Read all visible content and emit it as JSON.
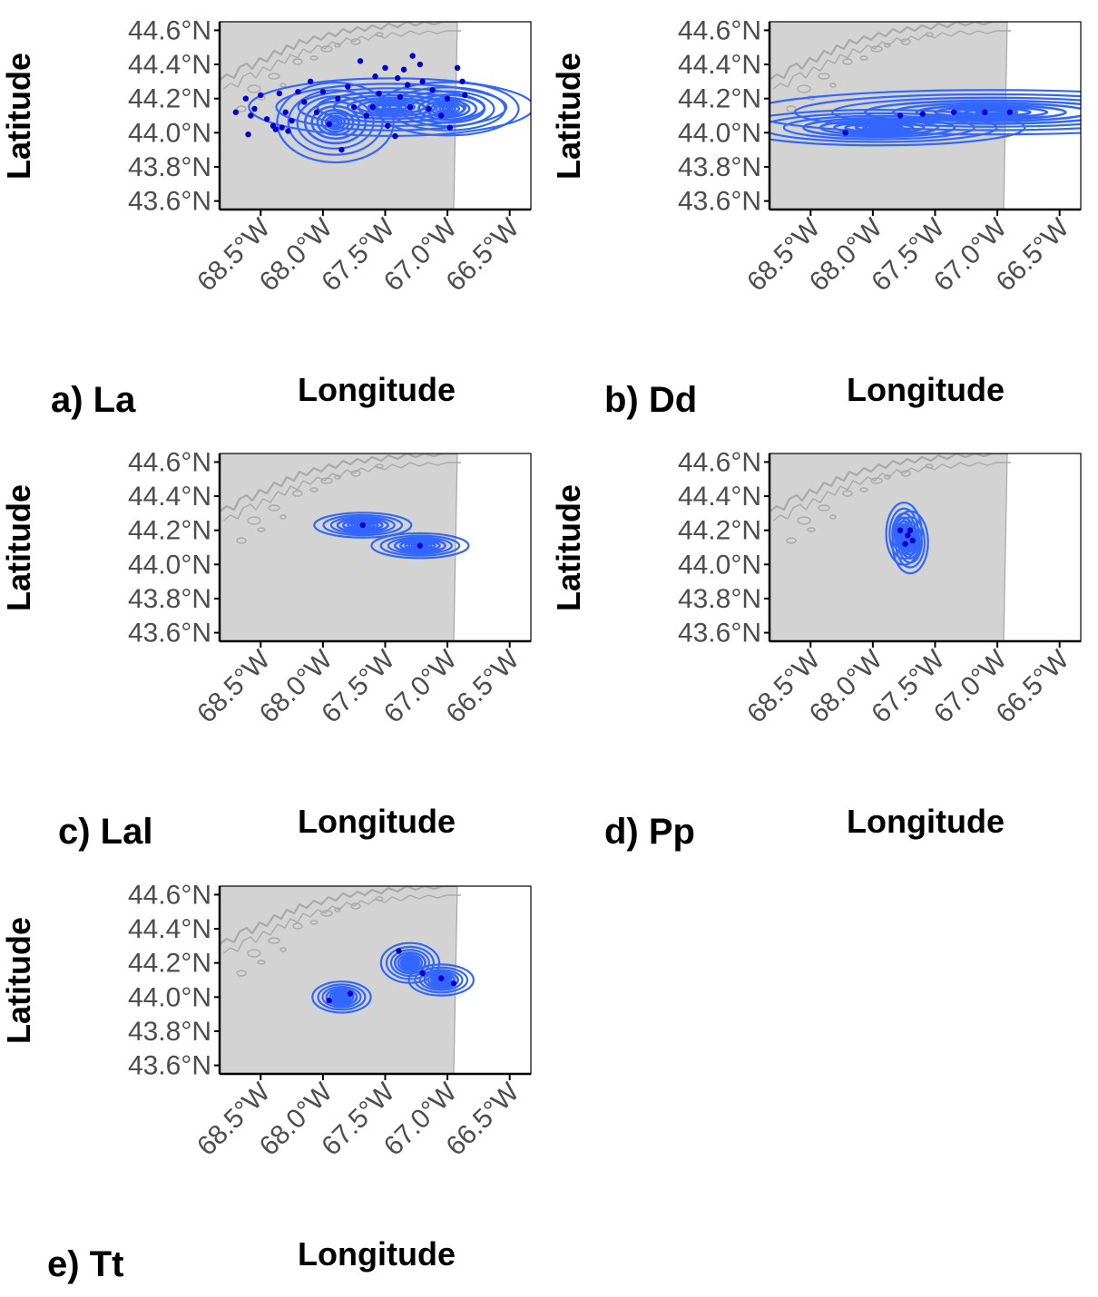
{
  "chart_data": [
    {
      "type": "map-density-contour",
      "panel_label": "a) La",
      "xlabel": "Longitude",
      "ylabel": "Latitude",
      "xlim": [
        -68.83,
        -66.33
      ],
      "ylim": [
        43.55,
        44.65
      ],
      "x_ticks": [
        -68.5,
        -68.0,
        -67.5,
        -67.0,
        -66.5
      ],
      "x_tick_labels": [
        "68.5°W",
        "68.0°W",
        "67.5°W",
        "67.0°W",
        "66.5°W"
      ],
      "y_ticks": [
        43.6,
        43.8,
        44.0,
        44.2,
        44.4,
        44.6
      ],
      "y_tick_labels": [
        "43.6°N",
        "43.8°N",
        "44.0°N",
        "44.2°N",
        "44.4°N",
        "44.6°N"
      ],
      "density_centers": [
        {
          "x": -67.45,
          "y": 44.15,
          "sx": 0.44,
          "sy": 0.065
        },
        {
          "x": -67.0,
          "y": 44.14,
          "sx": 0.22,
          "sy": 0.06
        },
        {
          "x": -67.9,
          "y": 44.06,
          "sx": 0.18,
          "sy": 0.09
        }
      ],
      "points": [
        [
          -68.62,
          44.2
        ],
        [
          -68.5,
          44.22
        ],
        [
          -68.35,
          44.23
        ],
        [
          -68.2,
          44.24
        ],
        [
          -68.58,
          44.1
        ],
        [
          -68.55,
          44.14
        ],
        [
          -68.45,
          44.08
        ],
        [
          -68.3,
          44.12
        ],
        [
          -68.15,
          44.18
        ],
        [
          -68.7,
          44.12
        ],
        [
          -68.4,
          44.04
        ],
        [
          -68.38,
          44.02
        ],
        [
          -68.33,
          44.03
        ],
        [
          -68.28,
          44.01
        ],
        [
          -68.6,
          43.99
        ],
        [
          -68.1,
          44.3
        ],
        [
          -67.95,
          44.05
        ],
        [
          -67.85,
          43.9
        ],
        [
          -67.7,
          44.42
        ],
        [
          -67.75,
          44.15
        ],
        [
          -67.65,
          44.1
        ],
        [
          -67.5,
          44.38
        ],
        [
          -67.48,
          44.04
        ],
        [
          -67.42,
          43.98
        ],
        [
          -67.4,
          44.32
        ],
        [
          -67.35,
          44.37
        ],
        [
          -67.32,
          44.28
        ],
        [
          -67.28,
          44.45
        ],
        [
          -67.22,
          44.4
        ],
        [
          -67.2,
          44.3
        ],
        [
          -67.12,
          44.25
        ],
        [
          -67.05,
          44.1
        ],
        [
          -67.0,
          44.2
        ],
        [
          -66.98,
          44.03
        ],
        [
          -66.92,
          44.38
        ],
        [
          -66.88,
          44.3
        ],
        [
          -66.86,
          44.22
        ],
        [
          -67.58,
          44.33
        ],
        [
          -67.6,
          44.15
        ],
        [
          -67.3,
          44.15
        ],
        [
          -67.15,
          44.14
        ],
        [
          -67.55,
          44.23
        ],
        [
          -68.05,
          44.12
        ],
        [
          -67.8,
          44.27
        ],
        [
          -67.38,
          44.21
        ],
        [
          -68.0,
          44.24
        ],
        [
          -68.25,
          44.07
        ],
        [
          -67.88,
          44.2
        ]
      ]
    },
    {
      "type": "map-density-contour",
      "panel_label": "b) Dd",
      "xlabel": "Longitude",
      "ylabel": "Latitude",
      "xlim": [
        -68.83,
        -66.33
      ],
      "ylim": [
        43.55,
        44.65
      ],
      "x_ticks": [
        -68.5,
        -68.0,
        -67.5,
        -67.0,
        -66.5
      ],
      "x_tick_labels": [
        "68.5°W",
        "68.0°W",
        "67.5°W",
        "67.0°W",
        "66.5°W"
      ],
      "y_ticks": [
        43.6,
        43.8,
        44.0,
        44.2,
        44.4,
        44.6
      ],
      "y_tick_labels": [
        "43.6°N",
        "43.8°N",
        "44.0°N",
        "44.2°N",
        "44.4°N",
        "44.6°N"
      ],
      "density_centers": [
        {
          "x": -67.05,
          "y": 44.12,
          "sx": 0.75,
          "sy": 0.05
        },
        {
          "x": -67.95,
          "y": 44.03,
          "sx": 0.45,
          "sy": 0.04
        }
      ],
      "points": [
        [
          -68.22,
          44.0
        ],
        [
          -67.78,
          44.1
        ],
        [
          -67.6,
          44.11
        ],
        [
          -67.35,
          44.12
        ],
        [
          -67.1,
          44.12
        ],
        [
          -66.9,
          44.12
        ]
      ]
    },
    {
      "type": "map-density-contour",
      "panel_label": "c) Lal",
      "xlabel": "Longitude",
      "ylabel": "Latitude",
      "xlim": [
        -68.83,
        -66.33
      ],
      "ylim": [
        43.55,
        44.65
      ],
      "x_ticks": [
        -68.5,
        -68.0,
        -67.5,
        -67.0,
        -66.5
      ],
      "x_tick_labels": [
        "68.5°W",
        "68.0°W",
        "67.5°W",
        "67.0°W",
        "66.5°W"
      ],
      "y_ticks": [
        43.6,
        43.8,
        44.0,
        44.2,
        44.4,
        44.6
      ],
      "y_tick_labels": [
        "43.6°N",
        "43.8°N",
        "44.0°N",
        "44.2°N",
        "44.4°N",
        "44.6°N"
      ],
      "density_centers": [
        {
          "x": -67.68,
          "y": 44.23,
          "sx": 0.15,
          "sy": 0.028
        },
        {
          "x": -67.22,
          "y": 44.11,
          "sx": 0.15,
          "sy": 0.028
        }
      ],
      "points": [
        [
          -67.68,
          44.23
        ],
        [
          -67.22,
          44.11
        ]
      ]
    },
    {
      "type": "map-density-contour",
      "panel_label": "d) Pp",
      "xlabel": "Longitude",
      "ylabel": "Latitude",
      "xlim": [
        -68.83,
        -66.33
      ],
      "ylim": [
        43.55,
        44.65
      ],
      "x_ticks": [
        -68.5,
        -68.0,
        -67.5,
        -67.0,
        -66.5
      ],
      "x_tick_labels": [
        "68.5°W",
        "68.0°W",
        "67.5°W",
        "67.0°W",
        "66.5°W"
      ],
      "y_ticks": [
        43.6,
        43.8,
        44.0,
        44.2,
        44.4,
        44.6
      ],
      "y_tick_labels": [
        "43.6°N",
        "43.8°N",
        "44.0°N",
        "44.2°N",
        "44.4°N",
        "44.6°N"
      ],
      "density_centers": [
        {
          "x": -67.75,
          "y": 44.18,
          "sx": 0.055,
          "sy": 0.07
        },
        {
          "x": -67.7,
          "y": 44.13,
          "sx": 0.055,
          "sy": 0.07
        }
      ],
      "points": [
        [
          -67.78,
          44.2
        ],
        [
          -67.72,
          44.17
        ],
        [
          -67.74,
          44.12
        ],
        [
          -67.68,
          44.14
        ],
        [
          -67.7,
          44.2
        ]
      ]
    },
    {
      "type": "map-density-contour",
      "panel_label": "e) Tt",
      "xlabel": "Longitude",
      "ylabel": "Latitude",
      "xlim": [
        -68.83,
        -66.33
      ],
      "ylim": [
        43.55,
        44.65
      ],
      "x_ticks": [
        -68.5,
        -68.0,
        -67.5,
        -67.0,
        -66.5
      ],
      "x_tick_labels": [
        "68.5°W",
        "68.0°W",
        "67.5°W",
        "67.0°W",
        "66.5°W"
      ],
      "y_ticks": [
        43.6,
        43.8,
        44.0,
        44.2,
        44.4,
        44.6
      ],
      "y_tick_labels": [
        "43.6°N",
        "43.8°N",
        "44.0°N",
        "44.2°N",
        "44.4°N",
        "44.6°N"
      ],
      "density_centers": [
        {
          "x": -67.85,
          "y": 44.0,
          "sx": 0.09,
          "sy": 0.035
        },
        {
          "x": -67.3,
          "y": 44.2,
          "sx": 0.09,
          "sy": 0.045
        },
        {
          "x": -67.05,
          "y": 44.1,
          "sx": 0.1,
          "sy": 0.035
        }
      ],
      "points": [
        [
          -67.95,
          43.98
        ],
        [
          -67.78,
          44.02
        ],
        [
          -67.39,
          44.27
        ],
        [
          -67.2,
          44.14
        ],
        [
          -67.05,
          44.11
        ],
        [
          -66.95,
          44.08
        ]
      ]
    }
  ],
  "colors": {
    "land": "#d3d3d3",
    "land_border": "#a6a6a6",
    "coast": "#a9a9a9",
    "contour": "#3366ff",
    "points": "#0000cd",
    "tick_text": "#4d4d4d",
    "axis": "#000000"
  }
}
